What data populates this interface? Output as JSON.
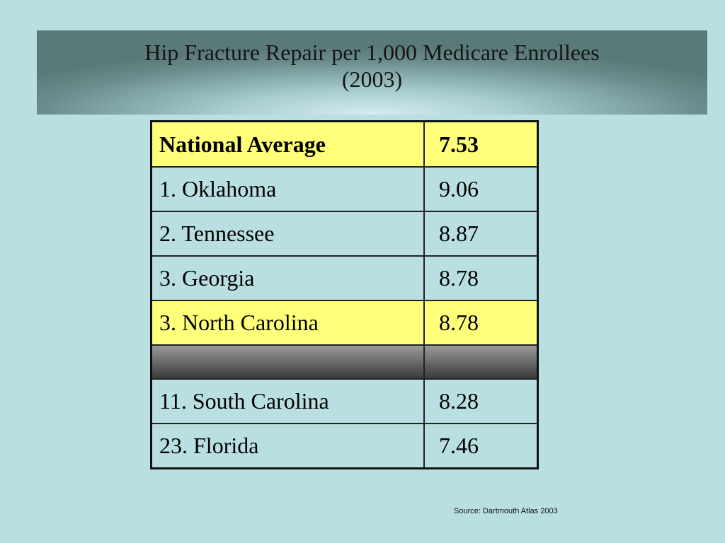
{
  "title": {
    "line1": "Hip Fracture Repair per 1,000 Medicare Enrollees",
    "line2": "(2003)"
  },
  "table": {
    "header": {
      "name": "National Average",
      "value": "7.53"
    },
    "rows": [
      {
        "name": "1. Oklahoma",
        "value": "9.06"
      },
      {
        "name": "2. Tennessee",
        "value": "8.87"
      },
      {
        "name": "3. Georgia",
        "value": "8.78"
      },
      {
        "name": "3. North Carolina",
        "value": "8.78"
      },
      {
        "name": "",
        "value": ""
      },
      {
        "name": "11. South Carolina",
        "value": "8.28"
      },
      {
        "name": "23. Florida",
        "value": "7.46"
      }
    ]
  },
  "source": "Source: Dartmouth Atlas 2003",
  "colors": {
    "background": "#b9dfe2",
    "highlight": "#ffff7a"
  }
}
